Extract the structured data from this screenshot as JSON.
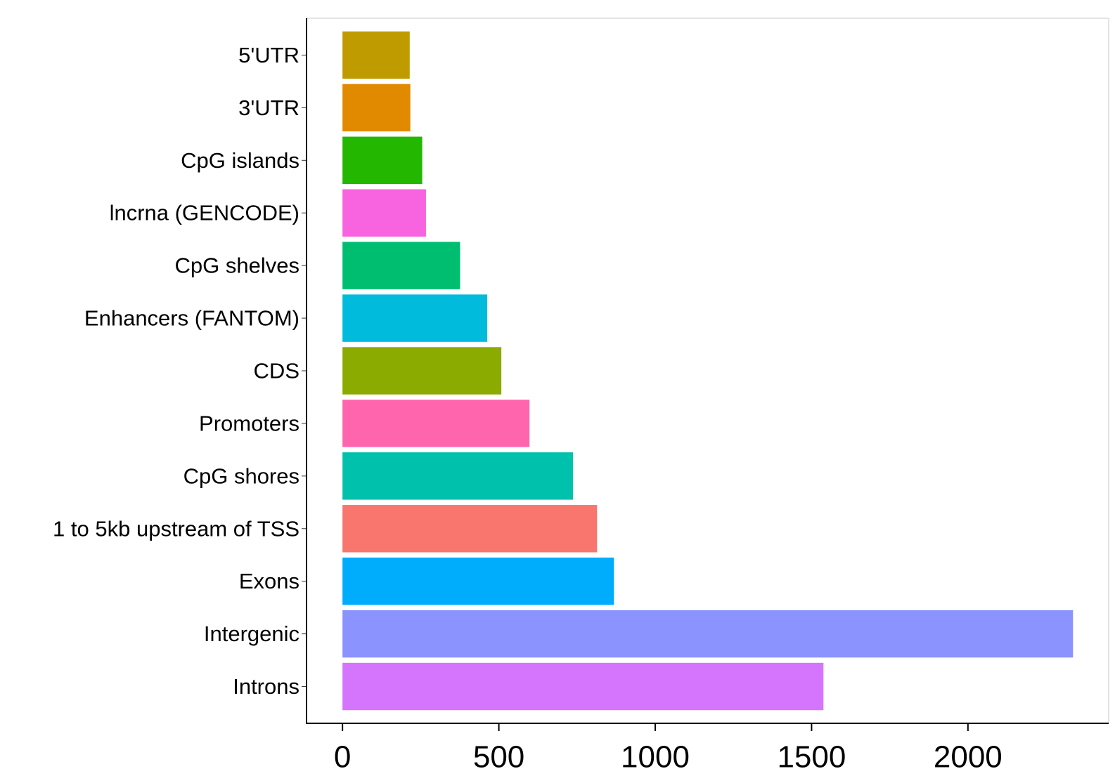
{
  "chart_data": {
    "type": "bar",
    "orientation": "horizontal",
    "categories": [
      "5'UTR",
      "3'UTR",
      "CpG islands",
      "lncrna (GENCODE)",
      "CpG shelves",
      "Enhancers (FANTOM)",
      "CDS",
      "Promoters",
      "CpG shores",
      "1 to 5kb upstream of TSS",
      "Exons",
      "Intergenic",
      "Introns"
    ],
    "values": [
      215,
      217,
      255,
      267,
      376,
      463,
      508,
      598,
      737,
      814,
      868,
      2336,
      1538
    ],
    "colors": [
      "#C09B00",
      "#E18A00",
      "#24B700",
      "#F863DF",
      "#00BE70",
      "#00BBDB",
      "#8CAB00",
      "#FF65AC",
      "#00C1AB",
      "#F8766D",
      "#00ACFC",
      "#8B93FF",
      "#D575FE"
    ],
    "xlim": [
      -115,
      2450
    ],
    "xticks": [
      "0",
      "500",
      "1000",
      "1500",
      "2000"
    ],
    "xtick_values": [
      0,
      500,
      1000,
      1500,
      2000
    ],
    "title": "",
    "xlabel": "",
    "ylabel": "",
    "grid": false,
    "legend": "none"
  }
}
